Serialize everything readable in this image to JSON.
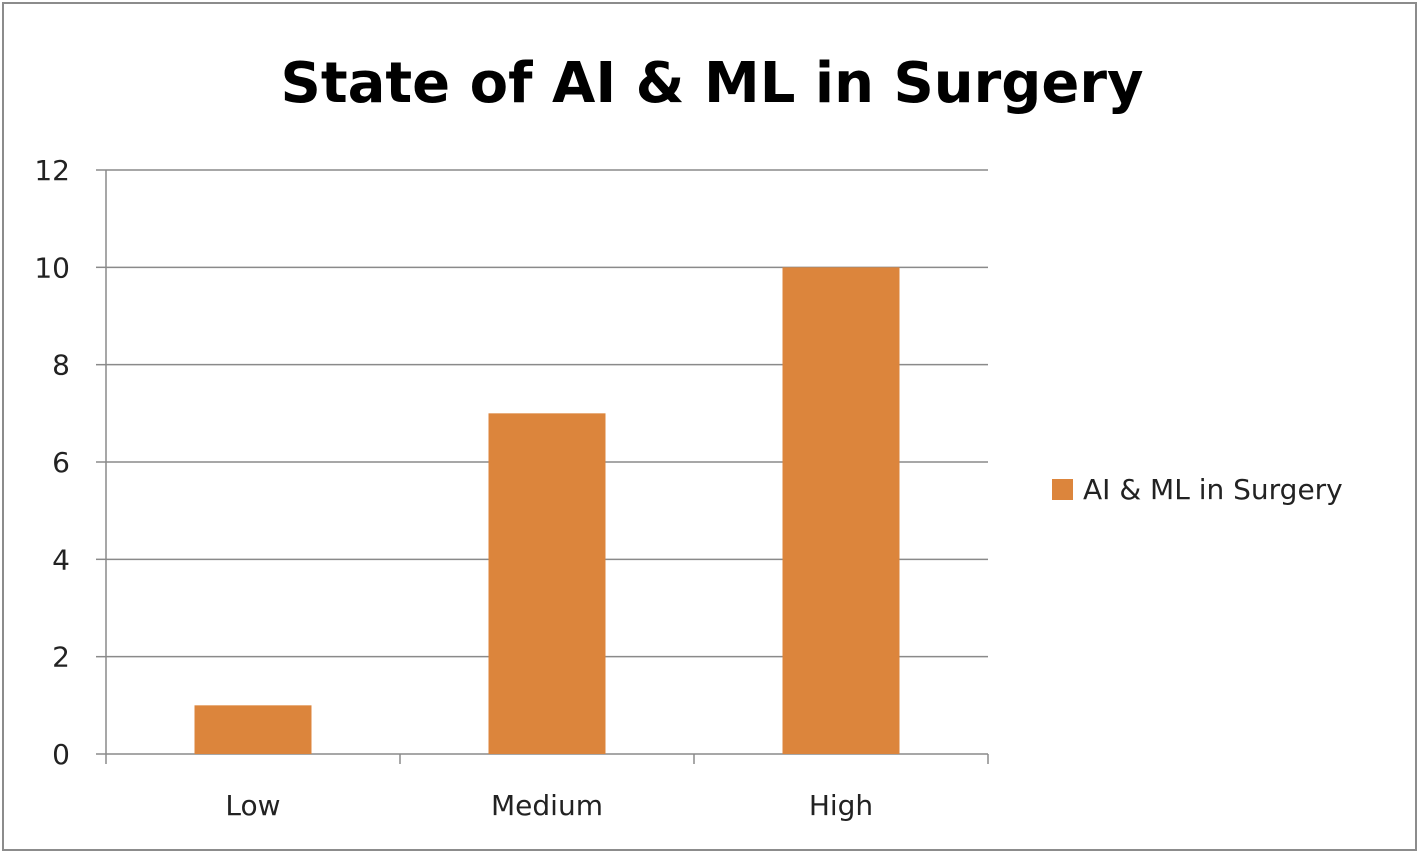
{
  "chart_data": {
    "type": "bar",
    "title": "State of AI & ML in Surgery",
    "categories": [
      "Low",
      "Medium",
      "High"
    ],
    "series": [
      {
        "name": "AI & ML in Surgery",
        "values": [
          1,
          7,
          10
        ],
        "color": "#dc853c"
      }
    ],
    "ylim": [
      0,
      12
    ],
    "yticks": [
      0,
      2,
      4,
      6,
      8,
      10,
      12
    ],
    "grid": true,
    "legend": "right"
  }
}
